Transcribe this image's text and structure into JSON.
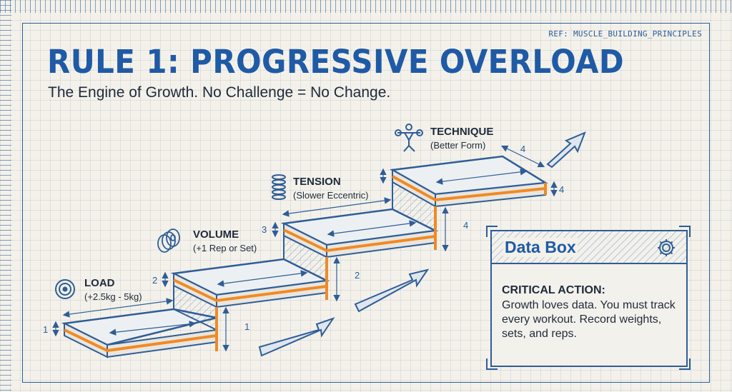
{
  "ref": "REF: MUSCLE_BUILDING_PRINCIPLES",
  "title": "RULE 1: PROGRESSIVE OVERLOAD",
  "subtitle": "The Engine of Growth. No Challenge = No Change.",
  "steps": [
    {
      "name": "LOAD",
      "detail": "(+2.5kg - 5kg)",
      "icon": "weight-plate-icon",
      "height_label": "1",
      "rise_label": "1"
    },
    {
      "name": "VOLUME",
      "detail": "(+1 Rep or Set)",
      "icon": "plate-stack-icon",
      "height_label": "2",
      "rise_label": "2"
    },
    {
      "name": "TENSION",
      "detail": "(Slower Eccentric)",
      "icon": "spring-icon",
      "height_label": "3",
      "rise_label": "4"
    },
    {
      "name": "TECHNIQUE",
      "detail": "(Better Form)",
      "icon": "lifter-icon",
      "height_label": "4",
      "depth_label": "4"
    }
  ],
  "data_box": {
    "title": "Data Box",
    "icon": "gear-icon",
    "heading": "CRITICAL ACTION:",
    "body": "Growth loves data. You must track every workout. Record weights, sets, and reps."
  },
  "colors": {
    "blue": "#1f5aa6",
    "line": "#2f5d96",
    "accent": "#f08a24",
    "paper": "#f3f1ea"
  }
}
